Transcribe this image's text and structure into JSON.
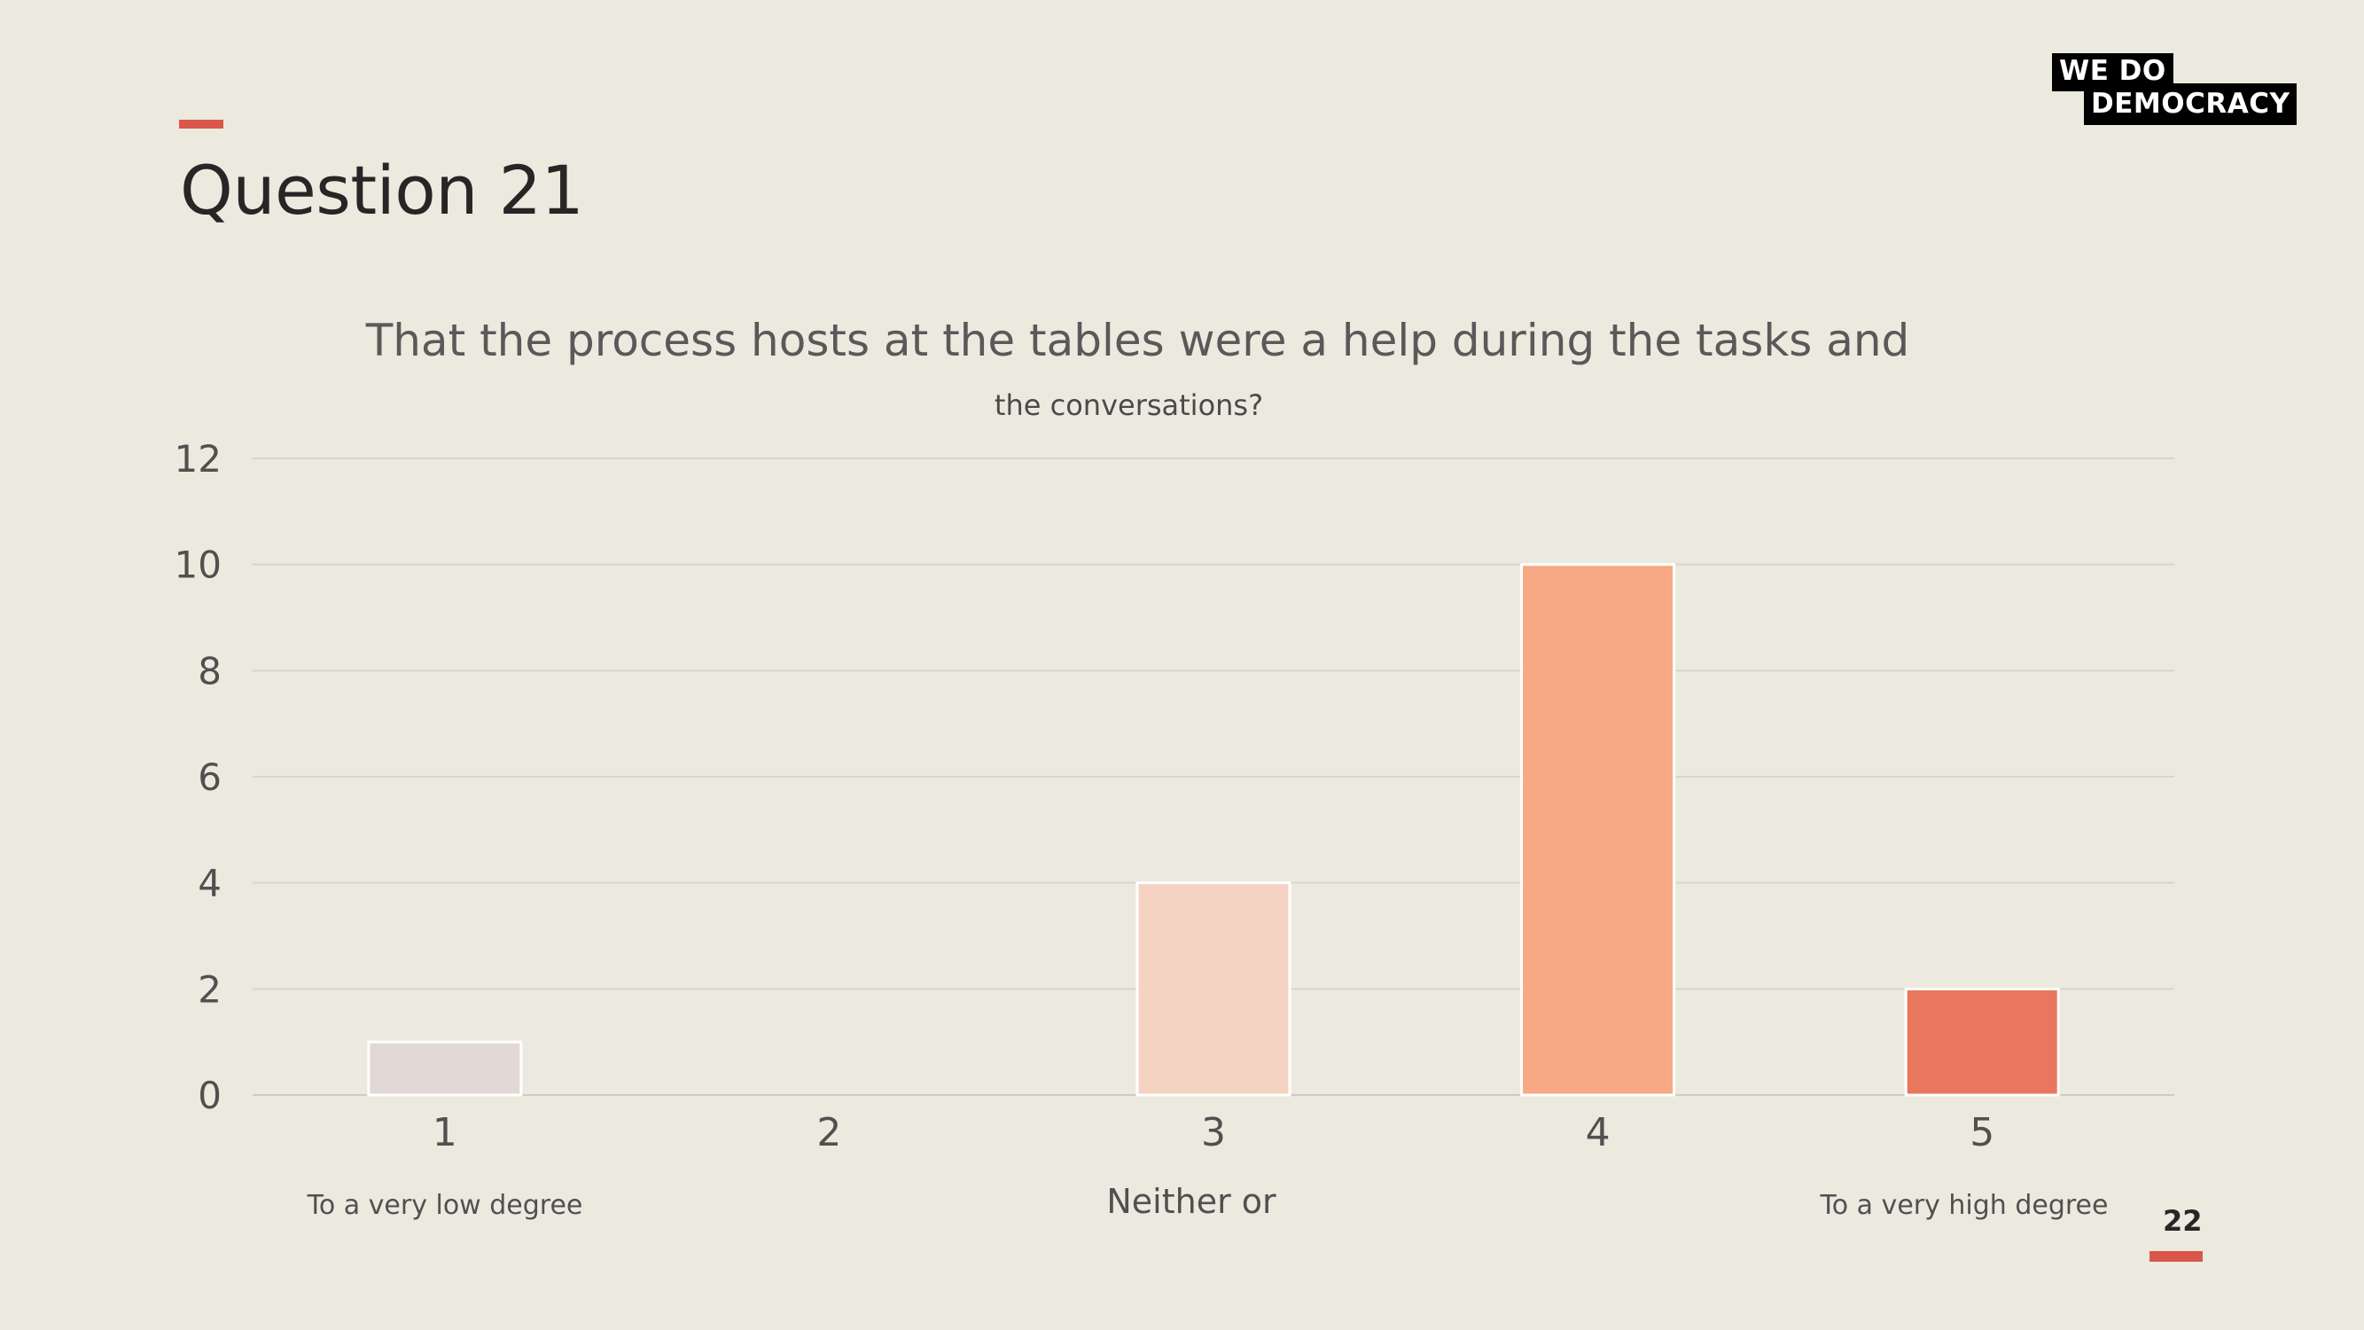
{
  "page": {
    "title": "Question 21",
    "page_number": "22"
  },
  "logo": {
    "line1": "WE  DO",
    "line2": "DEMOCRACY"
  },
  "colors": {
    "accent": "#D9574A",
    "background": "#ECEADF"
  },
  "chart_data": {
    "type": "bar",
    "title": "That the process hosts at the tables were a help during the tasks and",
    "subtitle": "the conversations?",
    "categories": [
      "1",
      "2",
      "3",
      "4",
      "5"
    ],
    "values": [
      1,
      0,
      4,
      10,
      2
    ],
    "bar_colors": [
      "#E3D9D4",
      "#E3D9D4",
      "#F5D3C2",
      "#F6A984",
      "#E8775D"
    ],
    "ylim": [
      0,
      12
    ],
    "yticks": [
      0,
      2,
      4,
      6,
      8,
      10,
      12
    ],
    "grid": true,
    "scale_labels": {
      "low": "To a very low degree",
      "mid": "Neither or",
      "high": "To a very high degree"
    }
  }
}
